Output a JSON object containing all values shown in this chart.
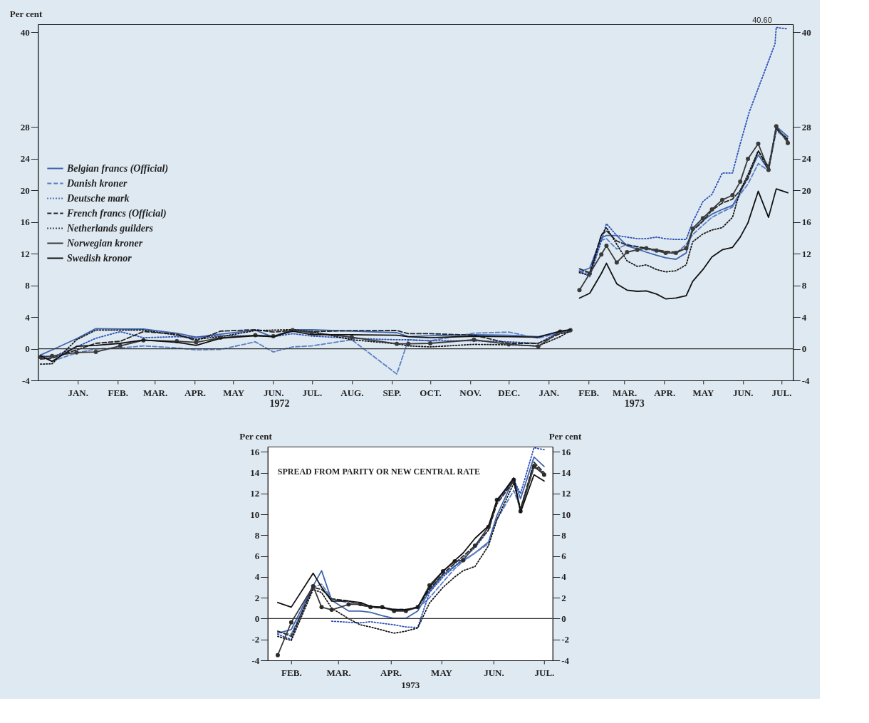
{
  "chart_data": [
    {
      "type": "line",
      "ylabel": "Per cent",
      "legend": "left",
      "xlim": [
        "1971-12-15",
        "1973-07-24"
      ],
      "ylim": [
        -4,
        41
      ],
      "yticks": [
        -4,
        0,
        4,
        8,
        12,
        16,
        20,
        24,
        28,
        40
      ],
      "y2lim": [
        -4,
        41
      ],
      "y2ticks": [
        -4,
        0,
        4,
        8,
        12,
        16,
        20,
        24,
        28,
        40
      ],
      "xticks": [
        {
          "value": "1972-01-15",
          "label": "JAN."
        },
        {
          "value": "1972-02-15",
          "label": "FEB."
        },
        {
          "value": "1972-03-15",
          "label": "MAR."
        },
        {
          "value": "1972-04-15",
          "label": "APR."
        },
        {
          "value": "1972-05-15",
          "label": "MAY"
        },
        {
          "value": "1972-06-15",
          "label": "JUN."
        },
        {
          "value": "1972-07-15",
          "label": "JUL."
        },
        {
          "value": "1972-08-15",
          "label": "AUG."
        },
        {
          "value": "1972-09-15",
          "label": "SEP."
        },
        {
          "value": "1972-10-15",
          "label": "OCT."
        },
        {
          "value": "1972-11-15",
          "label": "NOV."
        },
        {
          "value": "1972-12-15",
          "label": "DEC."
        },
        {
          "value": "1973-01-15",
          "label": "JAN."
        },
        {
          "value": "1973-02-15",
          "label": "FEB."
        },
        {
          "value": "1973-03-15",
          "label": "MAR."
        },
        {
          "value": "1973-04-15",
          "label": "APR."
        },
        {
          "value": "1973-05-15",
          "label": "MAY"
        },
        {
          "value": "1973-06-15",
          "label": "JUN."
        },
        {
          "value": "1973-07-15",
          "label": "JUL."
        }
      ],
      "ref_lines": [
        {
          "axis": "y",
          "value": 0,
          "color": "#333333"
        }
      ],
      "annotations": [
        "1972",
        "1973",
        {
          "text": "40.60",
          "x": "1973-07-11",
          "y": 40.6
        }
      ],
      "x": [
        "1971-12-17",
        "1971-12-26",
        "1972-01-14",
        "1972-01-29",
        "1972-02-17",
        "1972-03-06",
        "1972-04-01",
        "1972-04-16",
        "1972-05-05",
        "1972-06-01",
        "1972-06-15",
        "1972-06-30",
        "1972-07-15",
        "1972-08-15",
        "1972-09-19",
        "1972-09-28",
        "1972-10-15",
        "1972-11-18",
        "1972-12-15",
        "1973-01-07",
        "1973-01-24",
        "1973-02-01",
        "1973-02-05",
        "1973-02-08",
        "1973-02-16",
        "1973-02-25",
        "1973-03-01",
        "1973-03-09",
        "1973-03-17",
        "1973-03-25",
        "1973-04-01",
        "1973-04-09",
        "1973-04-16",
        "1973-04-24",
        "1973-05-02",
        "1973-05-07",
        "1973-05-15",
        "1973-05-22",
        "1973-05-30",
        "1973-06-07",
        "1973-06-13",
        "1973-06-19",
        "1973-06-27",
        "1973-07-05",
        "1973-07-11",
        "1973-07-20"
      ],
      "series": [
        {
          "name": "Belgian francs (Official)",
          "color": "#3f66b0",
          "line_style": "solid",
          "values": [
            -0.8,
            -0.15,
            1.26,
            2.54,
            2.5,
            2.48,
            1.96,
            1.45,
            1.84,
            2.35,
            1.45,
            2.41,
            2.41,
            2.22,
            2.03,
            1.52,
            1.64,
            1.77,
            1.71,
            1.52,
            2.16,
            2.41,
            null,
            9.7,
            10.2,
            14.0,
            14.3,
            14.3,
            13.0,
            12.6,
            12.2,
            11.8,
            11.5,
            11.3,
            12.1,
            15.0,
            16.2,
            17.0,
            17.6,
            18.1,
            19.7,
            21.8,
            24.5,
            22.6,
            28.1,
            26.8
          ]
        },
        {
          "name": "Danish kroner",
          "color": "#5b7fc4",
          "line_style": "dashed",
          "values": [
            -0.8,
            -1.56,
            -0.54,
            -0.02,
            0.1,
            0.36,
            0.1,
            -0.15,
            -0.09,
            0.87,
            -0.41,
            0.23,
            0.36,
            1.13,
            -3.2,
            1.13,
            1.0,
            1.97,
            2.1,
            1.32,
            2.03,
            2.29,
            null,
            9.85,
            9.5,
            13.7,
            13.9,
            12.6,
            13.2,
            12.8,
            12.6,
            12.3,
            12.2,
            12.0,
            13.2,
            14.4,
            15.6,
            16.6,
            17.3,
            17.9,
            19.5,
            20.8,
            23.4,
            22.5,
            27.5,
            26.5
          ]
        },
        {
          "name": "Deutsche mark",
          "color": "#2a4fb8",
          "line_style": "dotted",
          "x": [
            "1971-12-17",
            "1971-12-26",
            "1972-01-14",
            "1972-01-29",
            "1972-02-17",
            "1972-03-06",
            "1972-04-01",
            "1972-04-16",
            "1972-05-05",
            "1972-06-01",
            "1972-06-15",
            "1972-06-30",
            "1972-07-15",
            "1972-08-15",
            "1972-09-19",
            "1972-09-28",
            "1972-10-15",
            "1972-11-18",
            "1972-12-15",
            "1973-01-07",
            "1973-01-24",
            "1973-02-01",
            "1973-02-05",
            "1973-02-08",
            "1973-02-16",
            "1973-02-25",
            "1973-03-01",
            "1973-03-09",
            "1973-03-17",
            "1973-03-25",
            "1973-04-01",
            "1973-04-09",
            "1973-04-16",
            "1973-04-24",
            "1973-05-02",
            "1973-05-07",
            "1973-05-15",
            "1973-05-22",
            "1973-05-30",
            "1973-06-07",
            "1973-06-13",
            "1973-06-20",
            "1973-07-10",
            "1973-07-11",
            "1973-07-20"
          ],
          "values": [
            -0.9,
            -1.05,
            0.23,
            1.32,
            2.16,
            1.39,
            1.52,
            1.45,
            1.64,
            1.64,
            1.52,
            1.9,
            1.6,
            1.32,
            1.13,
            1.13,
            1.0,
            1.0,
            0.87,
            0.68,
            2.16,
            2.3,
            null,
            9.8,
            9.1,
            13.6,
            15.8,
            14.3,
            14.1,
            13.9,
            13.9,
            14.1,
            13.9,
            13.8,
            13.8,
            16.0,
            18.6,
            19.5,
            22.2,
            22.2,
            25.9,
            29.9,
            38.5,
            40.6,
            40.4
          ]
        },
        {
          "name": "French francs (Official)",
          "color": "#262626",
          "line_style": "dashed",
          "values": [
            -1.3,
            -1.2,
            -0.15,
            0.68,
            0.94,
            2.16,
            1.84,
            1.0,
            2.22,
            2.41,
            2.1,
            2.29,
            2.16,
            2.29,
            2.3,
            1.9,
            1.9,
            1.71,
            0.68,
            0.68,
            1.9,
            2.16,
            null,
            10.1,
            9.6,
            14.4,
            14.9,
            13.6,
            13.1,
            12.9,
            12.7,
            12.5,
            12.3,
            12.2,
            12.7,
            14.9,
            16.1,
            17.5,
            18.4,
            18.9,
            20.0,
            21.5,
            25.0,
            23.0,
            27.8,
            26.3
          ]
        },
        {
          "name": "Netherlands guilders",
          "color": "#151515",
          "line_style": "dotted",
          "values": [
            -1.95,
            -1.9,
            1.13,
            2.35,
            2.35,
            2.35,
            1.71,
            1.2,
            1.52,
            2.29,
            2.35,
            2.41,
            2.16,
            1.13,
            0.62,
            0.36,
            0.23,
            0.55,
            0.49,
            0.36,
            1.52,
            2.29,
            null,
            9.6,
            9.3,
            14.3,
            15.3,
            13.2,
            11.1,
            10.4,
            10.6,
            10.0,
            9.7,
            9.85,
            10.6,
            13.5,
            14.5,
            15.0,
            15.3,
            16.6,
            20.0,
            22.0,
            25.0,
            22.6,
            27.8,
            26.5
          ]
        },
        {
          "name": "Norwegian kroner",
          "color": "#3a3a3a",
          "line_style": "solid",
          "marker": "circle",
          "values": [
            -1.05,
            -0.92,
            -0.47,
            -0.41,
            0.36,
            1.07,
            0.94,
            0.81,
            1.39,
            1.71,
            1.58,
            2.35,
            2.03,
            1.45,
            0.62,
            0.62,
            0.68,
            1.13,
            0.55,
            0.3,
            2.16,
            2.35,
            null,
            7.4,
            9.5,
            11.9,
            13.0,
            10.9,
            12.2,
            12.5,
            12.7,
            12.4,
            12.1,
            12.1,
            12.7,
            15.2,
            16.5,
            17.6,
            18.8,
            19.4,
            21.1,
            24.0,
            25.9,
            22.6,
            28.1,
            26.0
          ]
        },
        {
          "name": "Swedish kronor",
          "color": "#111111",
          "line_style": "solid",
          "values": [
            -0.9,
            -1.6,
            0.3,
            0.43,
            0.68,
            1.1,
            0.81,
            0.43,
            1.32,
            1.64,
            1.52,
            2.22,
            1.77,
            1.77,
            1.71,
            1.52,
            1.39,
            1.58,
            1.52,
            1.45,
            2.22,
            2.41,
            null,
            6.4,
            7.0,
            9.5,
            10.8,
            8.2,
            7.4,
            7.25,
            7.3,
            6.9,
            6.3,
            6.4,
            6.7,
            8.5,
            10.0,
            11.6,
            12.5,
            12.8,
            14.1,
            15.9,
            19.9,
            16.6,
            20.2,
            19.7
          ]
        }
      ]
    },
    {
      "type": "line",
      "title": "SPREAD FROM PARITY OR NEW CENTRAL RATE",
      "xlabel": "1973",
      "ylabel": "Per cent",
      "y2label": "Per cent",
      "xlim": [
        "1973-02-01",
        "1973-07-20"
      ],
      "ylim": [
        -4,
        16.5
      ],
      "yticks": [
        -4,
        -2,
        0,
        2,
        4,
        6,
        8,
        10,
        12,
        14,
        16
      ],
      "y2lim": [
        -4,
        16.5
      ],
      "y2ticks": [
        -4,
        -2,
        0,
        2,
        4,
        6,
        8,
        10,
        12,
        14,
        16
      ],
      "xticks": [
        {
          "value": "1973-02-15",
          "label": "FEB."
        },
        {
          "value": "1973-03-15",
          "label": "MAR."
        },
        {
          "value": "1973-04-15",
          "label": "APR."
        },
        {
          "value": "1973-05-15",
          "label": "MAY"
        },
        {
          "value": "1973-06-15",
          "label": "JUN."
        },
        {
          "value": "1973-07-15",
          "label": "JUL."
        }
      ],
      "ref_lines": [
        {
          "axis": "y",
          "value": 0,
          "color": "#333333"
        }
      ],
      "x": [
        "1973-02-07",
        "1973-02-15",
        "1973-02-28",
        "1973-03-05",
        "1973-03-11",
        "1973-03-21",
        "1973-03-28",
        "1973-04-03",
        "1973-04-10",
        "1973-04-17",
        "1973-04-24",
        "1973-05-01",
        "1973-05-08",
        "1973-05-16",
        "1973-05-23",
        "1973-05-28",
        "1973-06-04",
        "1973-06-12",
        "1973-06-17",
        "1973-06-27",
        "1973-07-01",
        "1973-07-09",
        "1973-07-15"
      ],
      "series": [
        {
          "color": "#3f66b0",
          "line_style": "solid",
          "values": [
            -1.4,
            -1.05,
            3.15,
            4.6,
            1.75,
            0.73,
            0.73,
            0.6,
            0.28,
            0.03,
            0.03,
            0.73,
            2.64,
            4.17,
            5.06,
            5.57,
            6.3,
            7.35,
            9.9,
            13.4,
            11.5,
            15.5,
            14.6
          ]
        },
        {
          "color": "#5b7fc4",
          "line_style": "dashed",
          "values": [
            -1.3,
            -1.5,
            3.0,
            3.3,
            1.9,
            1.5,
            1.3,
            1.2,
            1.0,
            0.9,
            0.9,
            1.0,
            2.0,
            3.5,
            4.8,
            5.5,
            6.3,
            7.2,
            9.5,
            12.3,
            10.5,
            14.5,
            14.0
          ]
        },
        {
          "color": "#2a4fb8",
          "line_style": "dotted",
          "values": [
            -1.5,
            -2.0,
            3.3,
            null,
            -0.25,
            -0.35,
            -0.4,
            -0.3,
            -0.45,
            -0.6,
            -0.8,
            -0.85,
            2.5,
            4.0,
            5.0,
            5.8,
            6.8,
            8.5,
            11.2,
            13.3,
            12.0,
            16.4,
            16.2
          ]
        },
        {
          "color": "#2b2b2b",
          "line_style": "dashed",
          "values": [
            -1.2,
            -1.7,
            3.0,
            2.8,
            1.9,
            1.7,
            1.3,
            1.1,
            1.0,
            0.9,
            0.85,
            1.1,
            2.8,
            4.3,
            5.3,
            6.0,
            7.0,
            8.5,
            11.0,
            13.2,
            10.5,
            15.0,
            14.0
          ]
        },
        {
          "color": "#151515",
          "line_style": "dotted",
          "values": [
            -1.7,
            -2.1,
            2.8,
            2.5,
            1.0,
            0.0,
            -0.6,
            -0.8,
            -1.1,
            -1.4,
            -1.2,
            -0.9,
            1.5,
            3.0,
            4.0,
            4.6,
            5.0,
            7.0,
            9.5,
            13.0,
            10.5,
            14.8,
            13.8
          ]
        },
        {
          "color": "#2b2b2b",
          "line_style": "solid",
          "marker": "circle",
          "values": [
            -3.5,
            -0.36,
            3.1,
            1.1,
            0.85,
            1.36,
            1.4,
            1.1,
            1.1,
            0.73,
            0.73,
            1.1,
            3.2,
            4.55,
            5.5,
            5.6,
            7.0,
            8.8,
            11.4,
            13.3,
            10.3,
            14.6,
            13.8
          ]
        },
        {
          "color": "#111111",
          "line_style": "solid",
          "values": [
            1.55,
            1.1,
            4.36,
            3.0,
            1.68,
            1.68,
            1.55,
            1.17,
            1.1,
            0.85,
            0.85,
            1.1,
            3.0,
            4.55,
            5.57,
            6.3,
            7.7,
            8.9,
            11.3,
            13.5,
            10.2,
            13.8,
            13.2
          ]
        }
      ]
    }
  ]
}
